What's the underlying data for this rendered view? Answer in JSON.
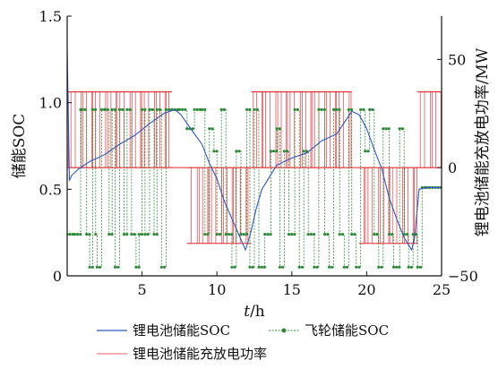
{
  "chart_data": {
    "type": "line",
    "x": {
      "label_italic": "t",
      "label_unit": "/h",
      "lim": [
        0,
        25
      ],
      "ticks": [
        5,
        10,
        15,
        20,
        25
      ]
    },
    "y_left": {
      "label": "储能SOC",
      "lim": [
        0,
        1.5
      ],
      "ticks": [
        "0",
        "0.5",
        "1.0",
        "1.5"
      ],
      "tick_values": [
        0,
        0.5,
        1.0,
        1.5
      ]
    },
    "y_right": {
      "label": "锂电池储能充放电功率/MW",
      "lim": [
        -50,
        70
      ],
      "ticks": [
        "−50",
        "0",
        "50"
      ],
      "tick_values": [
        -50,
        0,
        50
      ]
    },
    "grid": false,
    "legend": {
      "placement": "bottom",
      "items": [
        {
          "label": "锂电池储能SOC",
          "color": "#2b59c3",
          "style": "line"
        },
        {
          "label": "飞轮储能SOC",
          "color": "#2e8b3a",
          "style": "line-marker"
        },
        {
          "label": "锂电池储能充放电功率",
          "color": "#e8262b",
          "style": "line"
        }
      ]
    },
    "series": [
      {
        "key": "li_soc",
        "name": "锂电池储能SOC",
        "axis": "left",
        "color": "#2b59c3",
        "x": [
          0,
          0.15,
          0.3,
          0.8,
          1.5,
          2.5,
          3.5,
          4.5,
          5.5,
          6.5,
          7.2,
          7.6,
          8.0,
          8.5,
          9.0,
          9.5,
          10.0,
          10.5,
          11.0,
          11.5,
          11.9,
          12.2,
          12.6,
          13.0,
          13.5,
          14.0,
          15.0,
          16.0,
          17.0,
          18.0,
          19.0,
          19.5,
          20.0,
          20.5,
          21.0,
          21.5,
          22.0,
          22.5,
          23.0,
          23.2,
          23.5,
          24.0,
          25.0
        ],
        "y": [
          1.31,
          0.55,
          0.58,
          0.62,
          0.66,
          0.7,
          0.76,
          0.81,
          0.88,
          0.94,
          0.96,
          0.93,
          0.88,
          0.82,
          0.76,
          0.65,
          0.56,
          0.43,
          0.33,
          0.23,
          0.15,
          0.23,
          0.38,
          0.5,
          0.57,
          0.64,
          0.68,
          0.71,
          0.78,
          0.82,
          0.95,
          0.93,
          0.85,
          0.73,
          0.62,
          0.45,
          0.33,
          0.22,
          0.15,
          0.22,
          0.5,
          0.51,
          0.51
        ]
      },
      {
        "key": "fw_soc",
        "name": "飞轮储能SOC",
        "axis": "left",
        "color": "#2e8b3a",
        "x": [
          0,
          0.5,
          0.9,
          1.0,
          1.3,
          1.5,
          1.7,
          1.9,
          2.0,
          2.3,
          2.5,
          2.8,
          3.0,
          3.2,
          3.5,
          3.8,
          4.0,
          4.3,
          4.6,
          4.8,
          5.0,
          5.2,
          5.5,
          5.8,
          6.0,
          6.3,
          6.6,
          7.0,
          7.5,
          8.0,
          8.5,
          9.0,
          9.2,
          9.5,
          9.8,
          10.0,
          10.3,
          10.6,
          11.0,
          11.3,
          11.6,
          12.0,
          12.2,
          12.5,
          12.8,
          13.2,
          13.6,
          14.0,
          14.2,
          14.5,
          14.8,
          15.2,
          15.5,
          15.8,
          16.1,
          16.5,
          16.8,
          17.2,
          17.5,
          17.8,
          18.2,
          18.5,
          18.8,
          19.0,
          19.3,
          19.6,
          19.9,
          20.2,
          20.5,
          20.8,
          21.1,
          21.5,
          21.8,
          22.2,
          22.5,
          22.8,
          23.1,
          23.4,
          23.7,
          24.0,
          25.0
        ],
        "y": [
          0.24,
          0.24,
          0.96,
          0.96,
          0.24,
          0.05,
          0.96,
          0.24,
          0.05,
          0.96,
          0.96,
          0.24,
          0.96,
          0.05,
          0.96,
          0.24,
          0.96,
          0.24,
          0.05,
          0.24,
          0.96,
          0.24,
          0.96,
          0.24,
          0.96,
          0.05,
          0.96,
          0.96,
          0.96,
          0.85,
          0.96,
          0.96,
          0.24,
          0.85,
          0.72,
          0.24,
          0.96,
          0.24,
          0.05,
          0.72,
          0.24,
          0.96,
          0.05,
          0.96,
          0.05,
          0.24,
          0.72,
          0.85,
          0.05,
          0.72,
          0.24,
          0.96,
          0.05,
          0.72,
          0.24,
          0.05,
          0.96,
          0.24,
          0.05,
          0.96,
          0.24,
          0.05,
          0.96,
          0.24,
          0.05,
          0.96,
          0.72,
          0.96,
          0.24,
          0.05,
          0.85,
          0.24,
          0.05,
          0.85,
          0.24,
          0.05,
          0.24,
          0.05,
          0.51,
          0.51,
          0.51
        ]
      },
      {
        "key": "li_power",
        "name": "锂电池储能充放电功率",
        "axis": "right",
        "color": "#e8262b",
        "segments": [
          {
            "from": 0.0,
            "to": 7.0,
            "high": 35,
            "low": 0
          },
          {
            "from": 8.0,
            "to": 12.3,
            "high": 0,
            "low": -35
          },
          {
            "from": 12.3,
            "to": 19.0,
            "high": 35,
            "low": 0
          },
          {
            "from": 19.5,
            "to": 23.4,
            "high": 0,
            "low": -35
          },
          {
            "from": 23.4,
            "to": 25.0,
            "high": 35,
            "low": 0
          }
        ]
      }
    ]
  }
}
